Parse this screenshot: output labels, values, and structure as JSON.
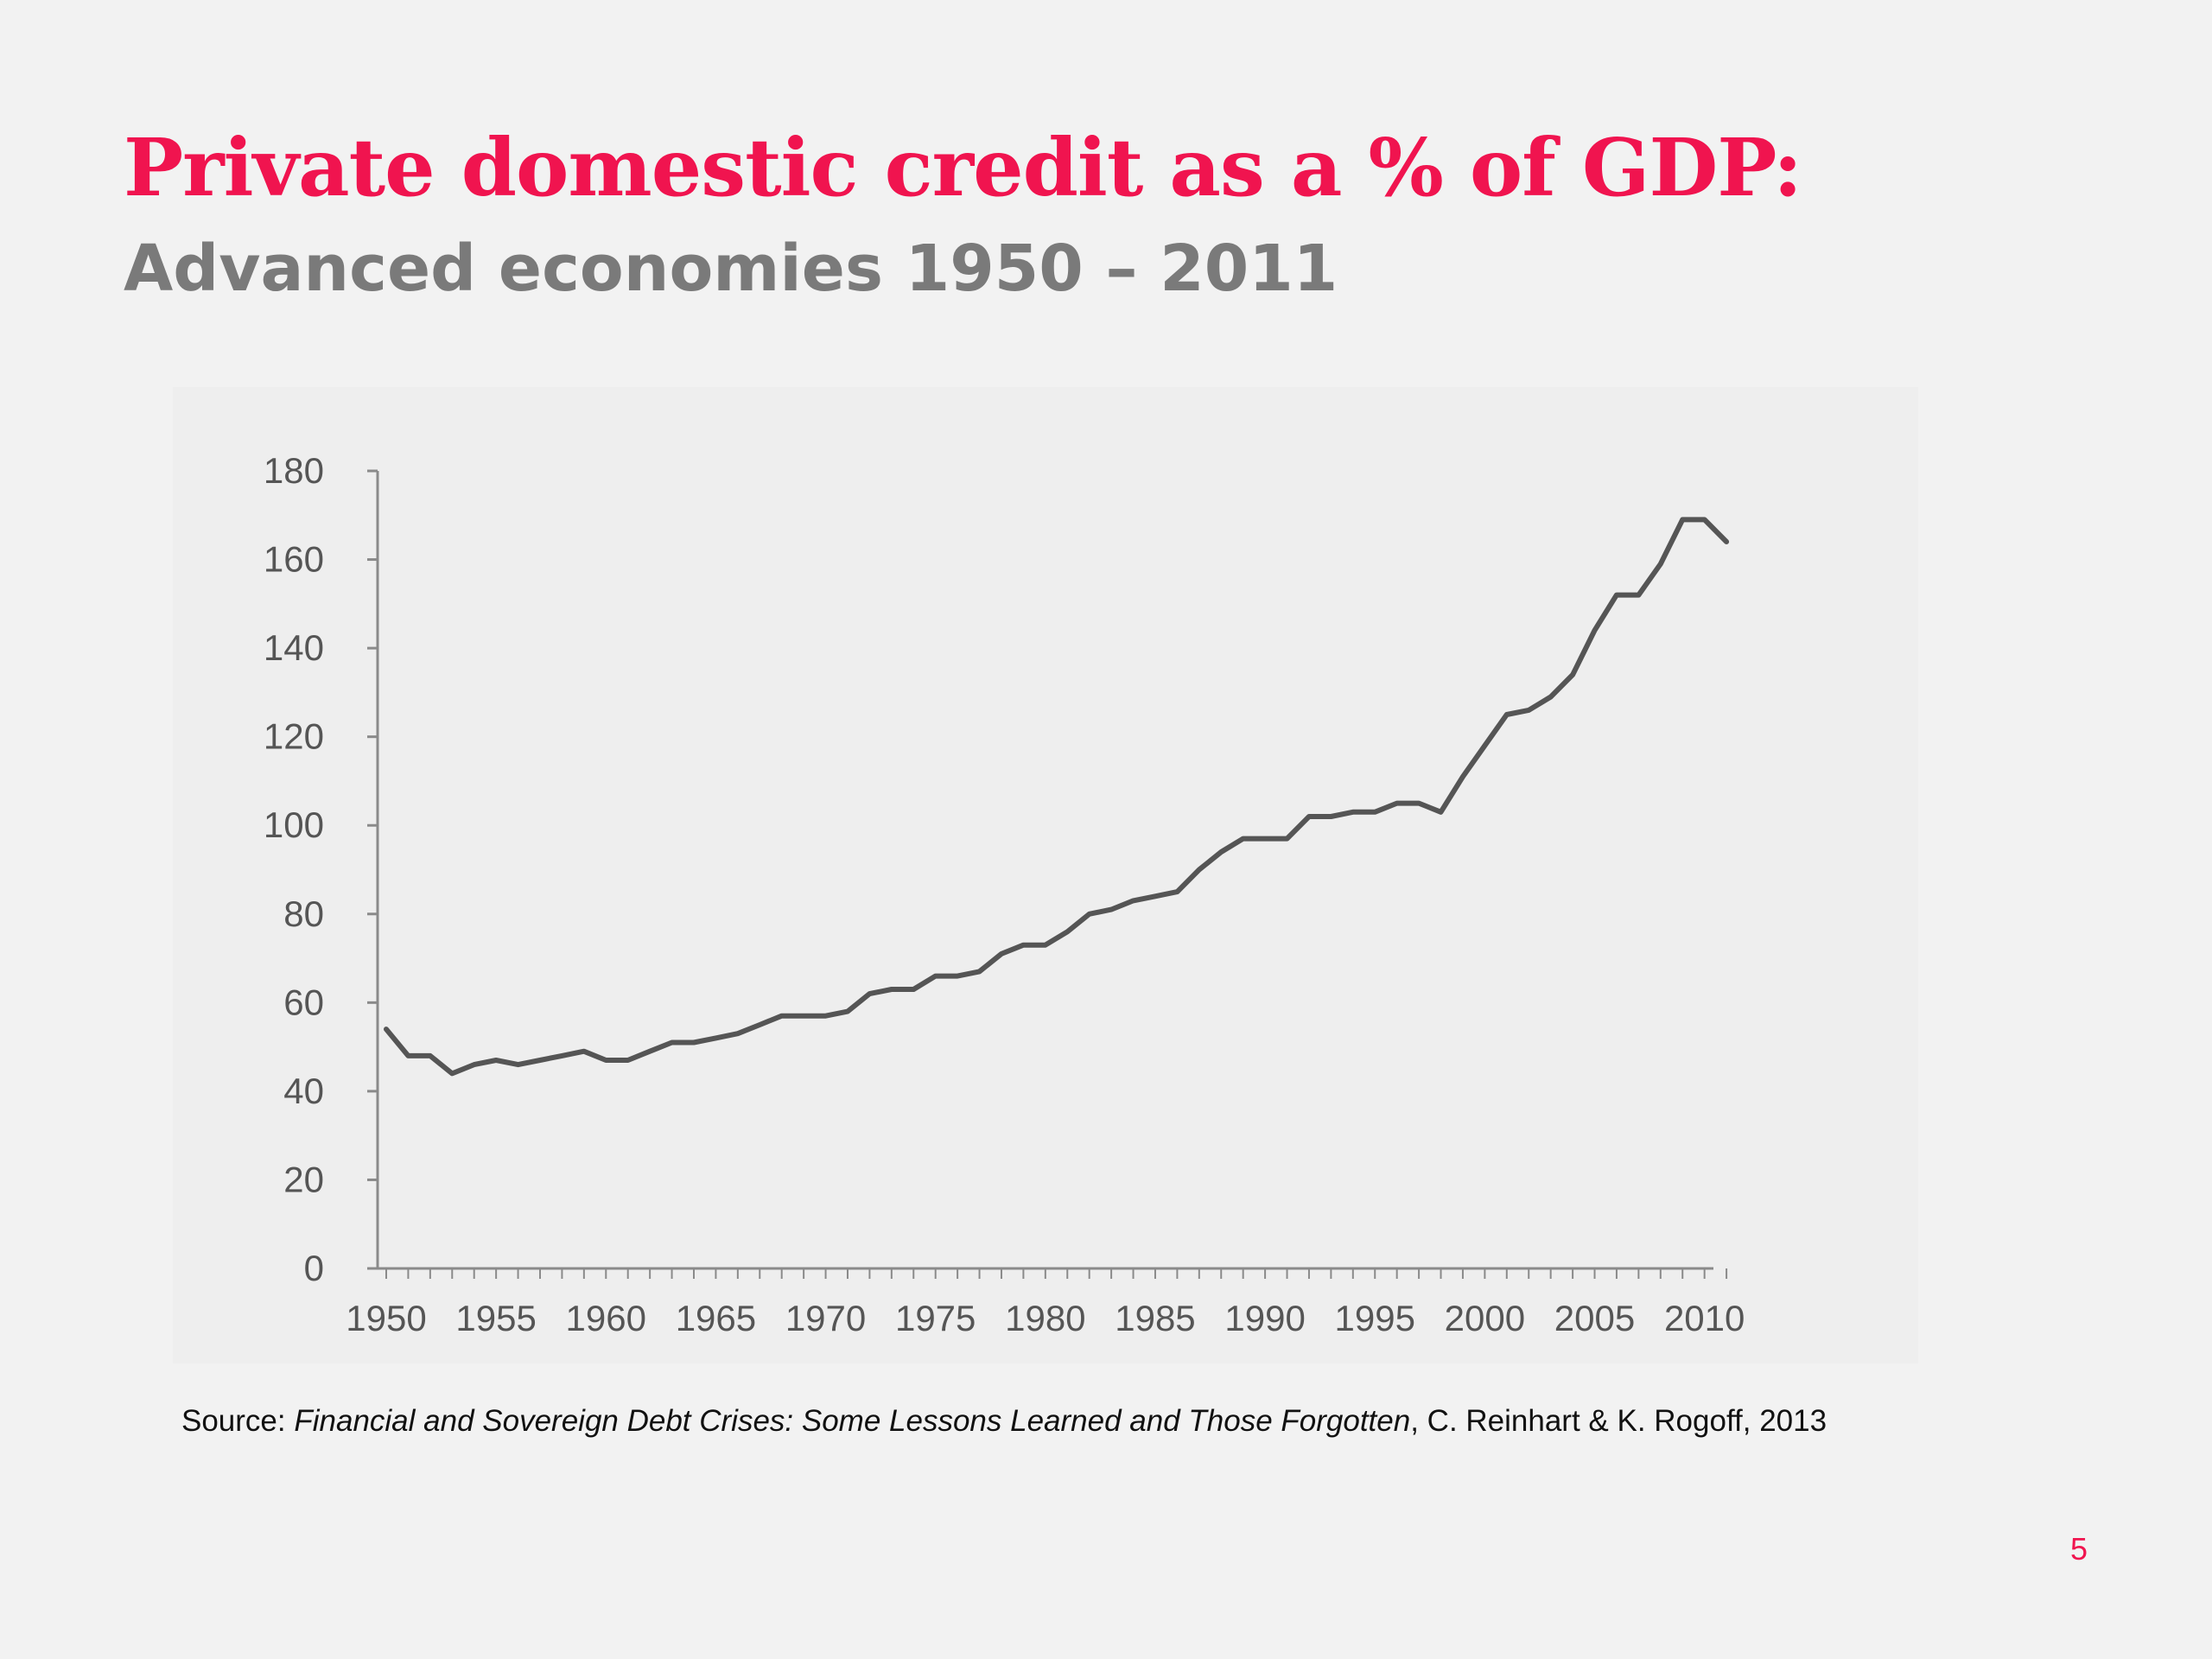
{
  "slide": {
    "title": "Private domestic credit as a % of GDP:",
    "subtitle": "Advanced economies 1950 – 2011",
    "source_prefix": "Source: ",
    "source_title": "Financial and Sovereign Debt Crises: Some Lessons Learned and Those Forgotten",
    "source_suffix": ", C. Reinhart & K.  Rogoff, 2013",
    "page_number": "5",
    "accent_color": "#f0144f"
  },
  "chart_data": {
    "type": "line",
    "title": "",
    "xlabel": "",
    "ylabel": "",
    "ylim": [
      0,
      180
    ],
    "xlim": [
      1950,
      2011
    ],
    "yticks": [
      "0",
      "20",
      "40",
      "60",
      "80",
      "100",
      "120",
      "140",
      "160",
      "180"
    ],
    "xticks": [
      "1950",
      "1955",
      "1960",
      "1965",
      "1970",
      "1975",
      "1980",
      "1985",
      "1990",
      "1995",
      "2000",
      "2005",
      "2010"
    ],
    "grid": false,
    "line_color": "#555555",
    "series": [
      {
        "x": [
          1950,
          1951,
          1952,
          1953,
          1954,
          1955,
          1956,
          1957,
          1958,
          1959,
          1960,
          1961,
          1962,
          1963,
          1964,
          1965,
          1966,
          1967,
          1968,
          1969,
          1970,
          1971,
          1972,
          1973,
          1974,
          1975,
          1976,
          1977,
          1978,
          1979,
          1980,
          1981,
          1982,
          1983,
          1984,
          1985,
          1986,
          1987,
          1988,
          1989,
          1990,
          1991,
          1992,
          1993,
          1994,
          1995,
          1996,
          1997,
          1998,
          1999,
          2000,
          2001,
          2002,
          2003,
          2004,
          2005,
          2006,
          2007,
          2008,
          2009,
          2010,
          2011
        ],
        "values": [
          54,
          48,
          48,
          44,
          46,
          47,
          46,
          47,
          48,
          49,
          47,
          47,
          49,
          51,
          51,
          52,
          53,
          55,
          57,
          57,
          57,
          58,
          62,
          63,
          63,
          66,
          66,
          67,
          71,
          73,
          73,
          76,
          80,
          81,
          83,
          84,
          85,
          90,
          94,
          97,
          97,
          97,
          102,
          102,
          103,
          103,
          105,
          105,
          103,
          111,
          118,
          125,
          126,
          129,
          134,
          144,
          152,
          152,
          159,
          169,
          169,
          164
        ]
      }
    ]
  }
}
